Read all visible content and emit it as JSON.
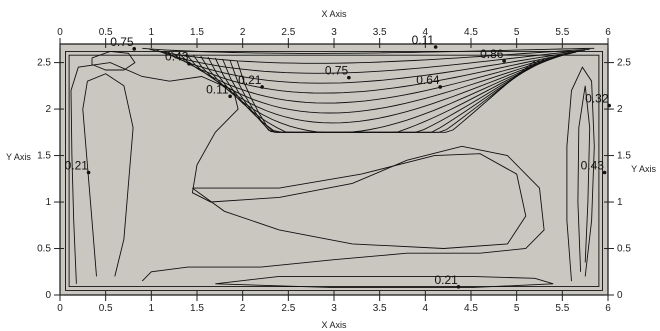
{
  "chart_data": {
    "type": "contour",
    "xlabel": "X Axis",
    "ylabel": "Y Axis",
    "xlim": [
      0,
      6
    ],
    "ylim": [
      0,
      2.7
    ],
    "xticks": [
      0,
      0.5,
      1,
      1.5,
      2,
      2.5,
      3,
      3.5,
      4,
      4.5,
      5,
      5.5,
      6
    ],
    "yticks": [
      0,
      0.5,
      1,
      1.5,
      2,
      2.5
    ],
    "x_tick_labels": [
      "0",
      "0.5",
      "1",
      "1.5",
      "2",
      "2.5",
      "3",
      "3.5",
      "4",
      "4.5",
      "5",
      "5.5",
      "6"
    ],
    "y_tick_labels": [
      "0",
      "0.5",
      "1",
      "1.5",
      "2",
      "2.5"
    ],
    "domain_color": "#c9c7c0",
    "line_color": "#111111",
    "contour_labels": [
      {
        "text": "0.75",
        "x": 0.55,
        "y": 2.68
      },
      {
        "text": "0.11",
        "x": 3.85,
        "y": 2.7
      },
      {
        "text": "0.86",
        "x": 4.6,
        "y": 2.55
      },
      {
        "text": "0.43",
        "x": 1.15,
        "y": 2.52
      },
      {
        "text": "0.75",
        "x": 2.9,
        "y": 2.37
      },
      {
        "text": "0.64",
        "x": 3.9,
        "y": 2.27
      },
      {
        "text": "0.21",
        "x": 1.95,
        "y": 2.27
      },
      {
        "text": "0.11",
        "x": 1.6,
        "y": 2.17
      },
      {
        "text": "0.32",
        "x": 5.75,
        "y": 2.07
      },
      {
        "text": "0.21",
        "x": 0.05,
        "y": 1.35
      },
      {
        "text": "0.43",
        "x": 5.7,
        "y": 1.35
      },
      {
        "text": "0.21",
        "x": 4.1,
        "y": 0.12
      }
    ]
  }
}
